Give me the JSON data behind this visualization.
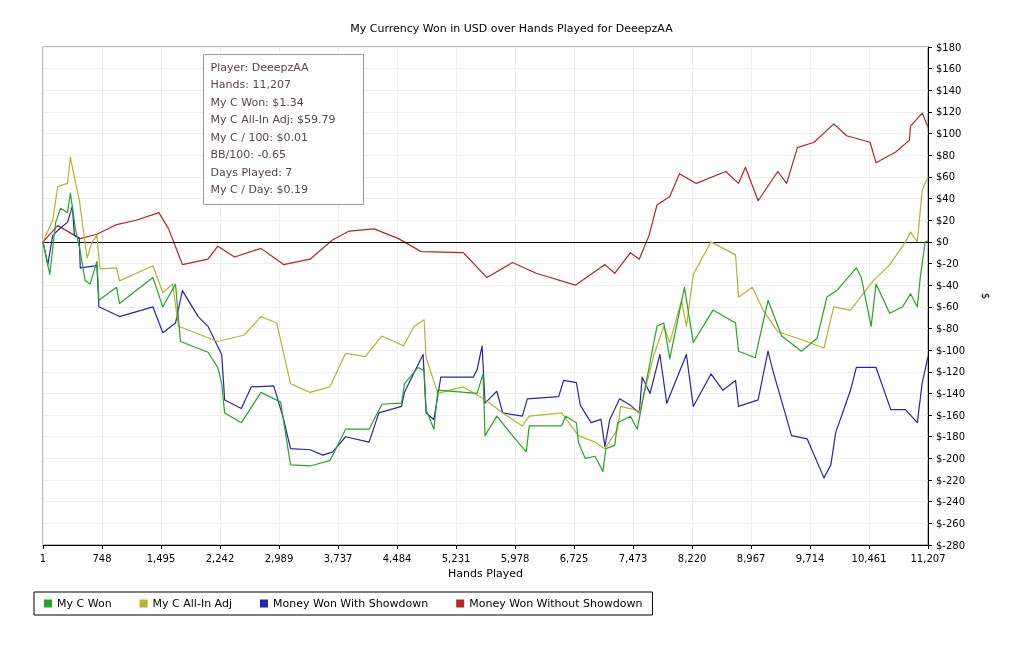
{
  "chart_data": {
    "type": "line",
    "title": "My Currency Won in USD over Hands Played for DeeepzAA",
    "xlabel": "Hands Played",
    "ylabel": "$",
    "xlim": [
      1,
      11207
    ],
    "xticks": [
      1,
      748,
      {
        "value": 1495,
        "label": "1,495"
      },
      {
        "value": 2242,
        "label": "2,242"
      },
      {
        "value": 2989,
        "label": "2,989"
      },
      {
        "value": 3737,
        "label": "3,737"
      },
      {
        "value": 4484,
        "label": "4,484"
      },
      {
        "value": 5231,
        "label": "5,231"
      },
      {
        "value": 5978,
        "label": "5,978"
      },
      {
        "value": 6725,
        "label": "6,725"
      },
      {
        "value": 7473,
        "label": "7,473"
      },
      {
        "value": 8220,
        "label": "8,220"
      },
      {
        "value": 8967,
        "label": "8,967"
      },
      {
        "value": 9714,
        "label": "9,714"
      },
      {
        "value": 10461,
        "label": "10,461"
      },
      {
        "value": 11207,
        "label": "11,207"
      }
    ],
    "ylim": [
      -280,
      180
    ],
    "yticks": [
      {
        "value": -280,
        "label": "$-280"
      },
      {
        "value": -260,
        "label": "$-260"
      },
      {
        "value": -240,
        "label": "$-240"
      },
      {
        "value": -220,
        "label": "$-220"
      },
      {
        "value": -200,
        "label": "$-200"
      },
      {
        "value": -180,
        "label": "$-180"
      },
      {
        "value": -160,
        "label": "$-160"
      },
      {
        "value": -140,
        "label": "$-140"
      },
      {
        "value": -120,
        "label": "$-120"
      },
      {
        "value": -100,
        "label": "$-100"
      },
      {
        "value": -80,
        "label": "$-80"
      },
      {
        "value": -60,
        "label": "$-60"
      },
      {
        "value": -40,
        "label": "$-40"
      },
      {
        "value": -20,
        "label": "$-20"
      },
      {
        "value": 0,
        "label": "$0"
      },
      {
        "value": 20,
        "label": "$20"
      },
      {
        "value": 40,
        "label": "$40"
      },
      {
        "value": 60,
        "label": "$60"
      },
      {
        "value": 80,
        "label": "$80"
      },
      {
        "value": 100,
        "label": "$100"
      },
      {
        "value": 120,
        "label": "$120"
      },
      {
        "value": 140,
        "label": "$140"
      },
      {
        "value": 160,
        "label": "$160"
      },
      {
        "value": 180,
        "label": "$180"
      }
    ],
    "grid": true,
    "legend": "bottom left",
    "marker": "none",
    "ref_lines": [
      {
        "axis": "y",
        "value": 0,
        "color": "#000000"
      }
    ],
    "annotations": [
      "Player: DeeepzAA",
      "Hands: 11,207",
      "My C Won: $1.34",
      "My C All-In Adj: $59.79",
      "My C / 100: $0.01",
      "BB/100: -0.65",
      "Days Played: 7",
      "My C / Day: $0.19"
    ],
    "series": [
      {
        "name": "My C Won",
        "color": "#22a822",
        "x": [
          1,
          87,
          162,
          224,
          311,
          348,
          411,
          473,
          535,
          597,
          684,
          709,
          933,
          970,
          1393,
          1518,
          1679,
          1742,
          2090,
          2214,
          2264,
          2301,
          2513,
          2761,
          3010,
          3135,
          3384,
          3632,
          3670,
          3832,
          4130,
          4292,
          4541,
          4578,
          4752,
          4827,
          4852,
          4951,
          5001,
          5498,
          5573,
          5598,
          5747,
          5946,
          6120,
          6158,
          6568,
          6618,
          6755,
          6780,
          6867,
          6991,
          7091,
          7128,
          7240,
          7277,
          7439,
          7526,
          7651,
          7775,
          7862,
          7937,
          8123,
          8235,
          8484,
          8770,
          8808,
          9019,
          9181,
          9355,
          9604,
          9803,
          9927,
          10052,
          10300,
          10362,
          10487,
          10549,
          10723,
          10885,
          10985,
          11072,
          11109,
          11171,
          11207
        ],
        "values": [
          0,
          -30,
          18,
          31,
          27,
          45,
          12,
          -9,
          -36,
          -39,
          -18,
          -54,
          -42,
          -57,
          -33,
          -60,
          -39,
          -92,
          -102,
          -116,
          -131,
          -158,
          -167,
          -139,
          -148,
          -206,
          -207,
          -202,
          -197,
          -173,
          -173,
          -150,
          -149,
          -131,
          -116,
          -119,
          -155,
          -173,
          -137,
          -140,
          -122,
          -179,
          -161,
          -179,
          -194,
          -170,
          -170,
          -161,
          -167,
          -185,
          -200,
          -198,
          -212,
          -191,
          -188,
          -167,
          -161,
          -173,
          -125,
          -78,
          -75,
          -108,
          -42,
          -93,
          -63,
          -75,
          -101,
          -107,
          -54,
          -87,
          -101,
          -89,
          -51,
          -45,
          -24,
          -33,
          -78,
          -39,
          -66,
          -60,
          -48,
          -60,
          -33,
          0,
          1
        ]
      },
      {
        "name": "My C All-In Adj",
        "color": "#b5b52a",
        "x": [
          1,
          124,
          187,
          311,
          348,
          398,
          460,
          560,
          622,
          684,
          722,
          933,
          970,
          1393,
          1518,
          1642,
          1717,
          2214,
          2550,
          2761,
          2961,
          3135,
          3384,
          3632,
          3832,
          4080,
          4292,
          4566,
          4702,
          4827,
          4852,
          5001,
          5324,
          5536,
          5660,
          5822,
          6071,
          6158,
          6568,
          6780,
          6991,
          7116,
          7277,
          7315,
          7489,
          7551,
          7738,
          7862,
          7937,
          8086,
          8148,
          8235,
          8459,
          8770,
          8808,
          8982,
          9119,
          9305,
          9554,
          9890,
          10014,
          10226,
          10512,
          10723,
          10922,
          10985,
          11072,
          11134,
          11207
        ],
        "values": [
          0,
          20,
          51,
          54,
          78,
          60,
          39,
          -15,
          0,
          6,
          -25,
          -24,
          -36,
          -22,
          -47,
          -39,
          -78,
          -92,
          -86,
          -69,
          -75,
          -131,
          -139,
          -134,
          -103,
          -106,
          -87,
          -96,
          -78,
          -72,
          -107,
          -140,
          -134,
          -143,
          -149,
          -158,
          -170,
          -161,
          -158,
          -179,
          -185,
          -191,
          -173,
          -152,
          -155,
          -158,
          -104,
          -78,
          -93,
          -54,
          -78,
          -30,
          0,
          -12,
          -51,
          -42,
          -63,
          -83,
          -89,
          -98,
          -60,
          -63,
          -36,
          -21,
          0,
          9,
          0,
          48,
          60
        ]
      },
      {
        "name": "Money Won With Showdown",
        "color": "#2424b8",
        "x": [
          1,
          62,
          124,
          224,
          311,
          373,
          398,
          460,
          473,
          684,
          709,
          970,
          1393,
          1518,
          1679,
          1766,
          1966,
          2090,
          2264,
          2301,
          2513,
          2637,
          2923,
          3048,
          3135,
          3384,
          3545,
          3670,
          3832,
          4130,
          4254,
          4541,
          4578,
          4752,
          4814,
          4852,
          4951,
          5038,
          5449,
          5498,
          5561,
          5598,
          5747,
          5822,
          6071,
          6133,
          6531,
          6593,
          6755,
          6805,
          6942,
          7066,
          7116,
          7178,
          7302,
          7439,
          7551,
          7588,
          7688,
          7812,
          7899,
          8148,
          8235,
          8459,
          8608,
          8770,
          8808,
          9056,
          9181,
          9243,
          9479,
          9678,
          9890,
          9977,
          10039,
          10226,
          10300,
          10549,
          10736,
          10922,
          11072,
          11134,
          11207
        ],
        "values": [
          0,
          -21,
          6,
          13,
          18,
          33,
          6,
          3,
          -24,
          -22,
          -60,
          -69,
          -60,
          -84,
          -75,
          -45,
          -69,
          -78,
          -104,
          -146,
          -154,
          -134,
          -133,
          -164,
          -191,
          -192,
          -197,
          -194,
          -180,
          -185,
          -158,
          -152,
          -139,
          -113,
          -104,
          -158,
          -164,
          -125,
          -125,
          -118,
          -96,
          -149,
          -138,
          -158,
          -161,
          -145,
          -143,
          -128,
          -130,
          -151,
          -167,
          -164,
          -189,
          -164,
          -145,
          -151,
          -158,
          -125,
          -140,
          -104,
          -149,
          -104,
          -152,
          -122,
          -137,
          -128,
          -152,
          -146,
          -101,
          -119,
          -179,
          -182,
          -218,
          -206,
          -176,
          -137,
          -116,
          -116,
          -155,
          -155,
          -167,
          -130,
          -106
        ]
      },
      {
        "name": "Money Won Without Showdown",
        "color": "#b82424",
        "x": [
          1,
          187,
          473,
          684,
          933,
          1182,
          1468,
          1592,
          1766,
          2090,
          2214,
          2426,
          2761,
          3048,
          3384,
          3670,
          3881,
          4192,
          4503,
          4789,
          5324,
          5623,
          5946,
          6245,
          6742,
          7116,
          7240,
          7439,
          7551,
          7675,
          7775,
          7937,
          8061,
          8273,
          8646,
          8808,
          8895,
          9056,
          9305,
          9417,
          9554,
          9765,
          10014,
          10176,
          10474,
          10549,
          10798,
          10972,
          10985,
          11134,
          11207
        ],
        "values": [
          0,
          15,
          3,
          7,
          16,
          20,
          27,
          12,
          -21,
          -16,
          -4,
          -14,
          -6,
          -21,
          -16,
          2,
          10,
          12,
          3,
          -9,
          -10,
          -33,
          -19,
          -29,
          -40,
          -21,
          -29,
          -10,
          -16,
          6,
          34,
          42,
          63,
          54,
          65,
          54,
          69,
          38,
          65,
          54,
          87,
          92,
          109,
          98,
          92,
          73,
          83,
          94,
          107,
          119,
          106
        ]
      }
    ]
  }
}
